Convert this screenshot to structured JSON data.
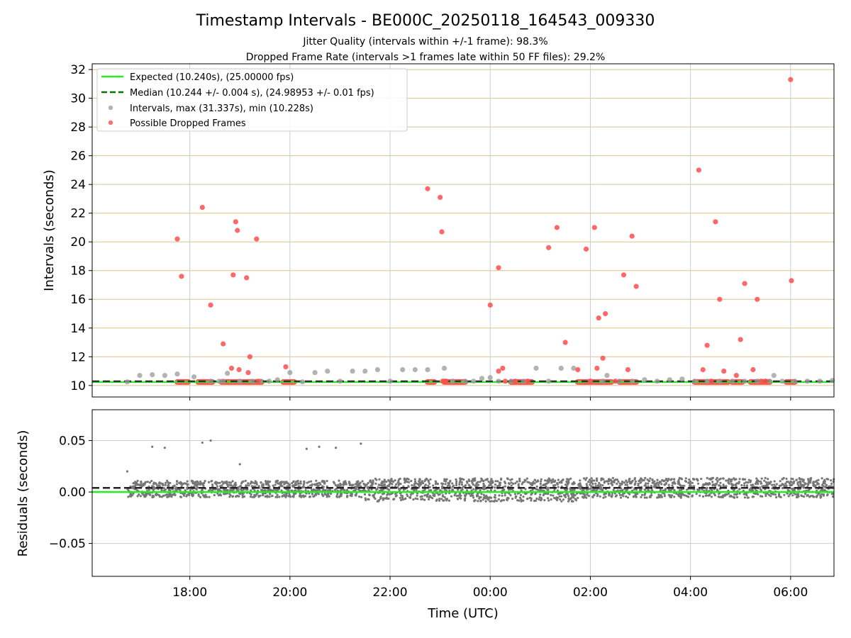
{
  "figure": {
    "title": "Timestamp Intervals - BE000C_20250118_164543_009330",
    "subtitle_line1": "Jitter Quality (intervals within +/-1 frame): 98.3%",
    "subtitle_line2": "Dropped Frame Rate (intervals >1 frames late within 50 FF files): 29.2%"
  },
  "chart_data": [
    {
      "type": "scatter",
      "panel": "intervals",
      "ylabel": "Intervals (seconds)",
      "xlim": [
        "16:03",
        "06:52"
      ],
      "ylim": [
        9.2,
        32.4
      ],
      "yticks": [
        10,
        12,
        14,
        16,
        18,
        20,
        22,
        24,
        26,
        28,
        30,
        32
      ],
      "xticks": [
        "18:00",
        "20:00",
        "22:00",
        "00:00",
        "02:00",
        "04:00",
        "06:00"
      ],
      "grid": true,
      "legend_position": "upper-left",
      "colors": {
        "expected": "#22ee22",
        "median": "#007700",
        "intervals": "#999999",
        "dropped": "#ff4d4d",
        "hgrid": "#d8c58a",
        "vgrid": "#cccccc"
      },
      "expected_line": {
        "label": "Expected (10.240s), (25.00000 fps)",
        "value": 10.24
      },
      "median_line": {
        "label": "Median (10.244 +/- 0.004 s), (24.98953 +/- 0.01 fps)",
        "value": 10.244
      },
      "series": [
        {
          "name": "Intervals, max (31.337s), min (10.228s)",
          "kind": "intervals",
          "x": [
            "16:45",
            "17:00",
            "17:15",
            "17:30",
            "17:45",
            "18:05",
            "18:25",
            "18:35",
            "18:40",
            "18:45",
            "19:00",
            "19:15",
            "19:25",
            "19:35",
            "19:45",
            "20:00",
            "20:15",
            "20:30",
            "20:45",
            "21:00",
            "21:15",
            "21:30",
            "21:45",
            "22:00",
            "22:15",
            "22:30",
            "22:45",
            "23:05",
            "23:15",
            "23:30",
            "23:40",
            "23:50",
            "00:00",
            "00:10",
            "00:25",
            "00:40",
            "00:55",
            "01:10",
            "01:25",
            "01:40",
            "02:00",
            "02:15",
            "02:20",
            "02:35",
            "02:50",
            "03:05",
            "03:20",
            "03:35",
            "03:50",
            "04:05",
            "04:20",
            "04:35",
            "04:50",
            "05:05",
            "05:20",
            "05:35",
            "05:40",
            "05:50",
            "06:05",
            "06:20",
            "06:35",
            "06:50"
          ],
          "y": [
            10.25,
            10.7,
            10.75,
            10.7,
            10.8,
            10.6,
            10.3,
            10.3,
            10.3,
            10.85,
            10.3,
            10.3,
            10.3,
            10.3,
            10.4,
            10.9,
            10.25,
            10.9,
            11.0,
            10.3,
            11.0,
            11.0,
            11.1,
            10.3,
            11.1,
            11.1,
            11.1,
            11.2,
            10.3,
            10.3,
            10.3,
            10.5,
            10.55,
            10.3,
            10.3,
            10.3,
            11.2,
            10.3,
            11.2,
            11.2,
            10.3,
            10.3,
            10.7,
            10.3,
            10.3,
            10.4,
            10.3,
            10.4,
            10.45,
            10.3,
            10.3,
            10.3,
            10.3,
            10.3,
            10.3,
            10.3,
            10.7,
            10.3,
            10.3,
            10.3,
            10.3,
            10.35
          ]
        },
        {
          "name": "Possible Dropped Frames",
          "kind": "dropped",
          "x": [
            "17:45",
            "17:50",
            "18:15",
            "18:25",
            "18:40",
            "18:50",
            "18:52",
            "18:55",
            "18:57",
            "18:59",
            "19:08",
            "19:10",
            "19:12",
            "19:20",
            "19:22",
            "19:55",
            "22:45",
            "23:00",
            "23:02",
            "23:03",
            "23:05",
            "23:07",
            "00:00",
            "00:10",
            "00:10",
            "00:15",
            "00:18",
            "00:30",
            "00:45",
            "01:10",
            "01:20",
            "01:30",
            "01:45",
            "01:55",
            "02:00",
            "02:05",
            "02:08",
            "02:10",
            "02:15",
            "02:18",
            "02:30",
            "02:40",
            "02:45",
            "02:50",
            "02:55",
            "04:10",
            "04:15",
            "04:20",
            "04:25",
            "04:30",
            "04:35",
            "04:40",
            "04:55",
            "05:00",
            "05:05",
            "05:15",
            "05:20",
            "05:25",
            "05:30",
            "06:00",
            "06:01"
          ],
          "y": [
            20.2,
            17.6,
            22.4,
            15.6,
            12.9,
            11.2,
            17.7,
            21.4,
            20.8,
            11.1,
            17.5,
            10.9,
            12.0,
            20.2,
            10.3,
            11.3,
            23.7,
            23.1,
            20.7,
            10.3,
            10.3,
            10.3,
            15.6,
            11.0,
            18.2,
            11.2,
            10.3,
            10.3,
            10.3,
            19.6,
            21.0,
            13.0,
            11.1,
            19.5,
            10.3,
            21.0,
            11.2,
            14.7,
            11.9,
            15.0,
            10.3,
            17.7,
            11.1,
            20.4,
            16.9,
            25.0,
            11.1,
            12.8,
            10.3,
            21.4,
            16.0,
            11.0,
            10.7,
            13.2,
            17.1,
            11.1,
            16.0,
            10.3,
            10.3,
            31.3,
            17.3
          ]
        }
      ],
      "dropped_bands": [
        [
          "17:45",
          "17:58"
        ],
        [
          "18:10",
          "18:27"
        ],
        [
          "18:38",
          "19:26"
        ],
        [
          "19:52",
          "20:05"
        ],
        [
          "22:45",
          "22:53"
        ],
        [
          "23:05",
          "23:30"
        ],
        [
          "00:25",
          "00:50"
        ],
        [
          "01:45",
          "02:25"
        ],
        [
          "02:35",
          "02:55"
        ],
        [
          "04:05",
          "04:45"
        ],
        [
          "04:50",
          "05:02"
        ],
        [
          "05:12",
          "05:35"
        ],
        [
          "05:55",
          "06:05"
        ]
      ]
    },
    {
      "type": "scatter",
      "panel": "residuals",
      "xlabel": "Time (UTC)",
      "ylabel": "Residuals (seconds)",
      "ylim": [
        -0.082,
        0.08
      ],
      "yticks": [
        -0.05,
        0.0,
        0.05
      ],
      "ytick_labels": [
        "−0.05",
        "0.00",
        "0.05"
      ],
      "xticks": [
        "18:00",
        "20:00",
        "22:00",
        "00:00",
        "02:00",
        "04:00",
        "06:00"
      ],
      "grid": true,
      "colors": {
        "points": "#777777",
        "zero_line": "#22ee22",
        "median_line": "#222222",
        "grid": "#cccccc"
      },
      "zero_line_value": 0.0,
      "median_line_value": 0.004,
      "outliers": {
        "x": [
          "16:45",
          "17:00",
          "17:15",
          "17:30",
          "18:15",
          "18:25",
          "19:00",
          "20:20",
          "20:35",
          "20:55",
          "21:25",
          "21:30"
        ],
        "y": [
          0.02,
          0.007,
          0.044,
          0.043,
          0.048,
          0.05,
          0.027,
          0.042,
          0.044,
          0.043,
          0.047,
          0.007
        ]
      },
      "bands": [
        {
          "from": "16:45",
          "to": "21:30",
          "center": 0.003,
          "spread": 0.01
        },
        {
          "from": "21:30",
          "to": "01:45",
          "center": 0.002,
          "spread": 0.014
        },
        {
          "from": "01:45",
          "to": "06:52",
          "center": 0.004,
          "spread": 0.012
        }
      ]
    }
  ]
}
